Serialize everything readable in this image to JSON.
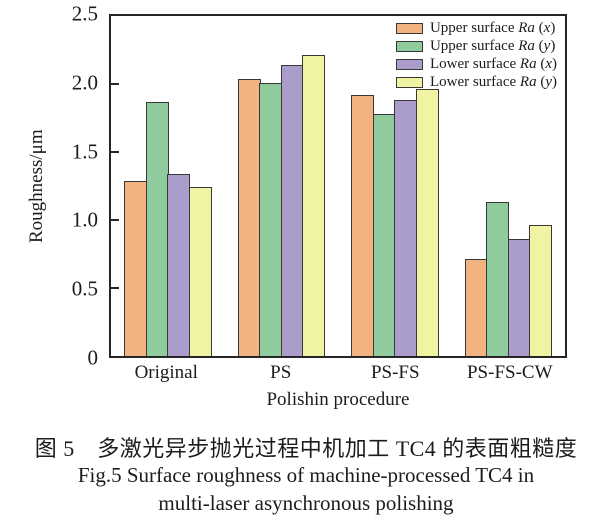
{
  "chart_data": {
    "type": "bar",
    "title": "",
    "categories": [
      "Original",
      "PS",
      "PS-FS",
      "PS-FS-CW"
    ],
    "series": [
      {
        "name": "Upper surface Ra (x)",
        "color": "#F2B380",
        "values": [
          1.29,
          2.04,
          1.92,
          0.71
        ]
      },
      {
        "name": "Upper surface Ra (y)",
        "color": "#90CB9D",
        "values": [
          1.87,
          2.01,
          1.78,
          1.13
        ]
      },
      {
        "name": "Lower surface Ra (x)",
        "color": "#AA9CCB",
        "values": [
          1.34,
          2.14,
          1.88,
          0.86
        ]
      },
      {
        "name": "Lower surface Ra (y)",
        "color": "#F0F3A2",
        "values": [
          1.24,
          2.21,
          1.96,
          0.96
        ]
      }
    ],
    "xlabel": "Polishin procedure",
    "ylabel": "Roughness/μm",
    "ylim": [
      0,
      2.5
    ],
    "yticks": [
      "0",
      "0.5",
      "1.0",
      "1.5",
      "2.0",
      "2.5"
    ],
    "grid": false,
    "legend_position": "top-right",
    "bar_outline_color": "#383838",
    "frame_color": "#262626"
  },
  "caption": {
    "line1": "图 5　多激光异步抛光过程中机加工 TC4 的表面粗糙度",
    "line2": "Fig.5 Surface roughness of machine-processed TC4 in",
    "line3": "multi-laser asynchronous polishing"
  }
}
